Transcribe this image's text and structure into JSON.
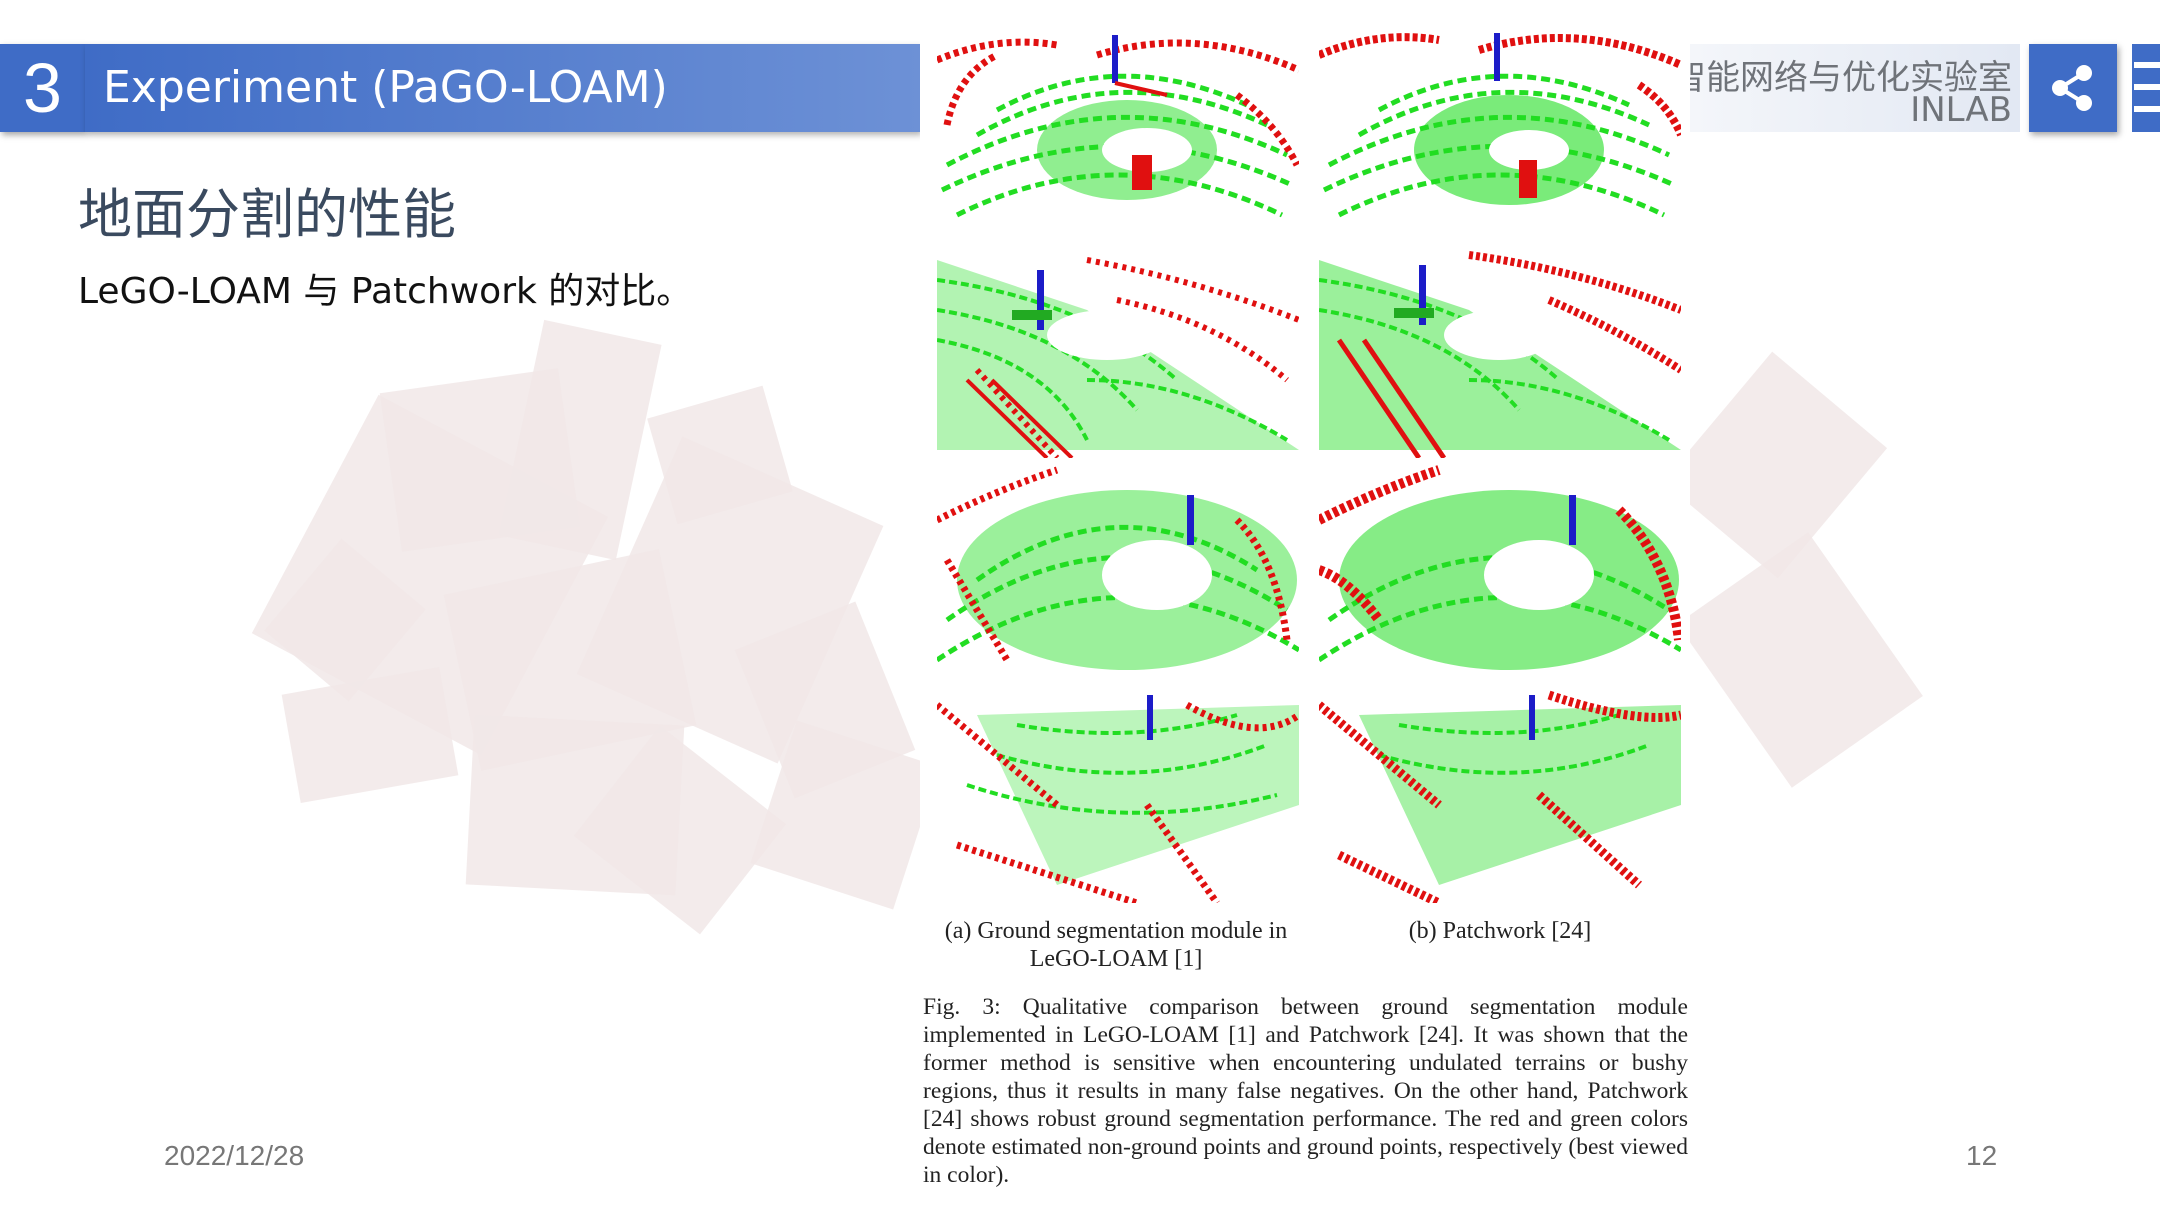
{
  "header": {
    "section_number": "3",
    "section_title": "Experiment (PaGO-LOAM)",
    "lab_name": "智能网络与优化实验室",
    "lab_abbr": "INLAB"
  },
  "slide": {
    "title": "地面分割的性能",
    "subtitle": "LeGO-LOAM 与 Patchwork 的对比。"
  },
  "figure": {
    "caption_a": "(a) Ground segmentation module in LeGO-LOAM [1]",
    "caption_b": "(b) Patchwork [24]",
    "caption": "Fig. 3: Qualitative comparison between ground segmentation module implemented in LeGO-LOAM [1] and Patchwork [24]. It was shown that the former method is sensitive when encountering undulated terrains or bushy regions, thus it results in many false negatives. On the other hand, Patchwork [24] shows robust ground segmentation performance. The red and green colors denote estimated non-ground points and ground points, respectively (best viewed in color).",
    "colors": {
      "ground": "#22dd22",
      "non_ground": "#e01010",
      "axis_blue": "#1c1cc8"
    }
  },
  "footer": {
    "date": "2022/12/28",
    "page_number": "12"
  },
  "icons": [
    "share-icon",
    "menu-icon"
  ]
}
